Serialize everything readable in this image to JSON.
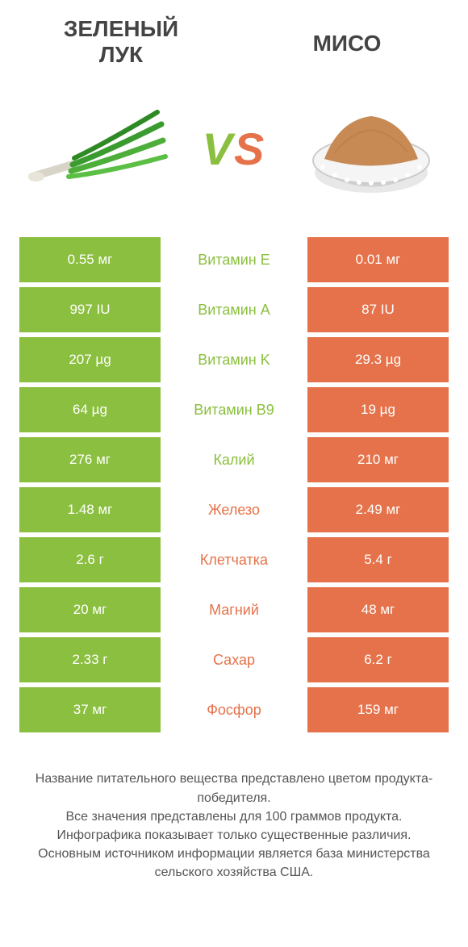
{
  "header": {
    "left_title": "ЗЕЛЕНЫЙ\nЛУК",
    "right_title": "МИСО"
  },
  "vs": {
    "v": "V",
    "s": "S"
  },
  "colors": {
    "green": "#8bbf3f",
    "orange": "#e5724a",
    "text_dark": "#444444"
  },
  "table": {
    "left_bg": "#8bbf3f",
    "right_bg": "#e5724a",
    "rows": [
      {
        "left": "0.55 мг",
        "mid": "Витамин E",
        "mid_color": "#8bbf3f",
        "right": "0.01 мг"
      },
      {
        "left": "997 IU",
        "mid": "Витамин A",
        "mid_color": "#8bbf3f",
        "right": "87 IU"
      },
      {
        "left": "207 µg",
        "mid": "Витамин K",
        "mid_color": "#8bbf3f",
        "right": "29.3 µg"
      },
      {
        "left": "64 µg",
        "mid": "Витамин B9",
        "mid_color": "#8bbf3f",
        "right": "19 µg"
      },
      {
        "left": "276 мг",
        "mid": "Калий",
        "mid_color": "#8bbf3f",
        "right": "210 мг"
      },
      {
        "left": "1.48 мг",
        "mid": "Железо",
        "mid_color": "#e5724a",
        "right": "2.49 мг"
      },
      {
        "left": "2.6 г",
        "mid": "Клетчатка",
        "mid_color": "#e5724a",
        "right": "5.4 г"
      },
      {
        "left": "20 мг",
        "mid": "Магний",
        "mid_color": "#e5724a",
        "right": "48 мг"
      },
      {
        "left": "2.33 г",
        "mid": "Сахар",
        "mid_color": "#e5724a",
        "right": "6.2 г"
      },
      {
        "left": "37 мг",
        "mid": "Фосфор",
        "mid_color": "#e5724a",
        "right": "159 мг"
      }
    ]
  },
  "footer": {
    "line1": "Название питательного вещества представлено цветом продукта-победителя.",
    "line2": "Все значения представлены для 100 граммов продукта.",
    "line3": "Инфографика показывает только существенные различия.",
    "line4": "Основным источником информации является база министерства сельского хозяйства США."
  }
}
